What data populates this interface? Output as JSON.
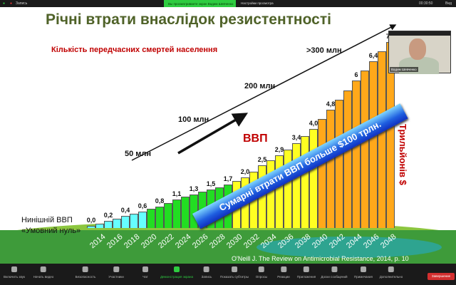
{
  "topbar": {
    "record_label": "Запись",
    "viewing_banner": "Вы просматриваете экран Вадим Шевченко",
    "view_options": "Настройки просмотра",
    "timer": "00:30:50",
    "view_label": "Вид"
  },
  "slide": {
    "title": "Річні втрати внаслідок резистентності",
    "subtitle": "Кількість передчасних смертей населення",
    "arrow_labels": [
      "50 млн",
      "100 млн",
      "200 млн",
      ">300 млн"
    ],
    "gdp_label": "ВВП",
    "unit_label": "Трильйонів $",
    "banner": "Сумарні втрати ВВП больше $100 трлн.",
    "current_gdp": "Нинішній ВВП",
    "conditional_zero": "«Умовний нуль»",
    "citation": "O'Neill J. The Review on Antimicrobial Resistance, 2014, p. 10"
  },
  "chart_data": {
    "type": "bar",
    "years": [
      "2014",
      "2016",
      "2018",
      "2020",
      "2022",
      "2024",
      "2026",
      "2028",
      "2030",
      "2032",
      "2034",
      "2036",
      "2038",
      "2040",
      "2042",
      "2044",
      "2046",
      "2048"
    ],
    "values": [
      0.0,
      0.1,
      0.2,
      0.3,
      0.4,
      0.5,
      0.6,
      0.7,
      0.8,
      0.95,
      1.1,
      1.2,
      1.3,
      1.4,
      1.5,
      1.6,
      1.7,
      1.85,
      2.0,
      2.25,
      2.5,
      2.7,
      2.9,
      3.15,
      3.4,
      3.7,
      4.0,
      4.4,
      4.8,
      5.2,
      5.6,
      6.0,
      6.4,
      6.8,
      7.2,
      7.6
    ],
    "data_labels": [
      "0,0",
      "0,2",
      "0,4",
      "0,6",
      "0,8",
      "1,1",
      "1,3",
      "1,5",
      "1,7",
      "2,0",
      "2,5",
      "2,9",
      "3,4",
      "4,0",
      "4,8",
      "6",
      "6,4",
      "7,2"
    ],
    "colors": {
      "cyan": "#66ffff",
      "green": "#22dd22",
      "yellow": "#ffff22",
      "orange": "#ffa81a"
    }
  },
  "video": {
    "name": "Вадим Шевченко"
  },
  "toolbar": {
    "items": [
      "Включить звук",
      "Начать видео",
      "Безопасность",
      "Участники",
      "Чат",
      "Демонстрация экрана",
      "Запись",
      "Показать субтитры",
      "Опросы",
      "Реакции",
      "Приложения",
      "Доски сообщений",
      "Примечания",
      "Дополнительно"
    ],
    "participants_count": "2",
    "end_label": "Завершение"
  }
}
